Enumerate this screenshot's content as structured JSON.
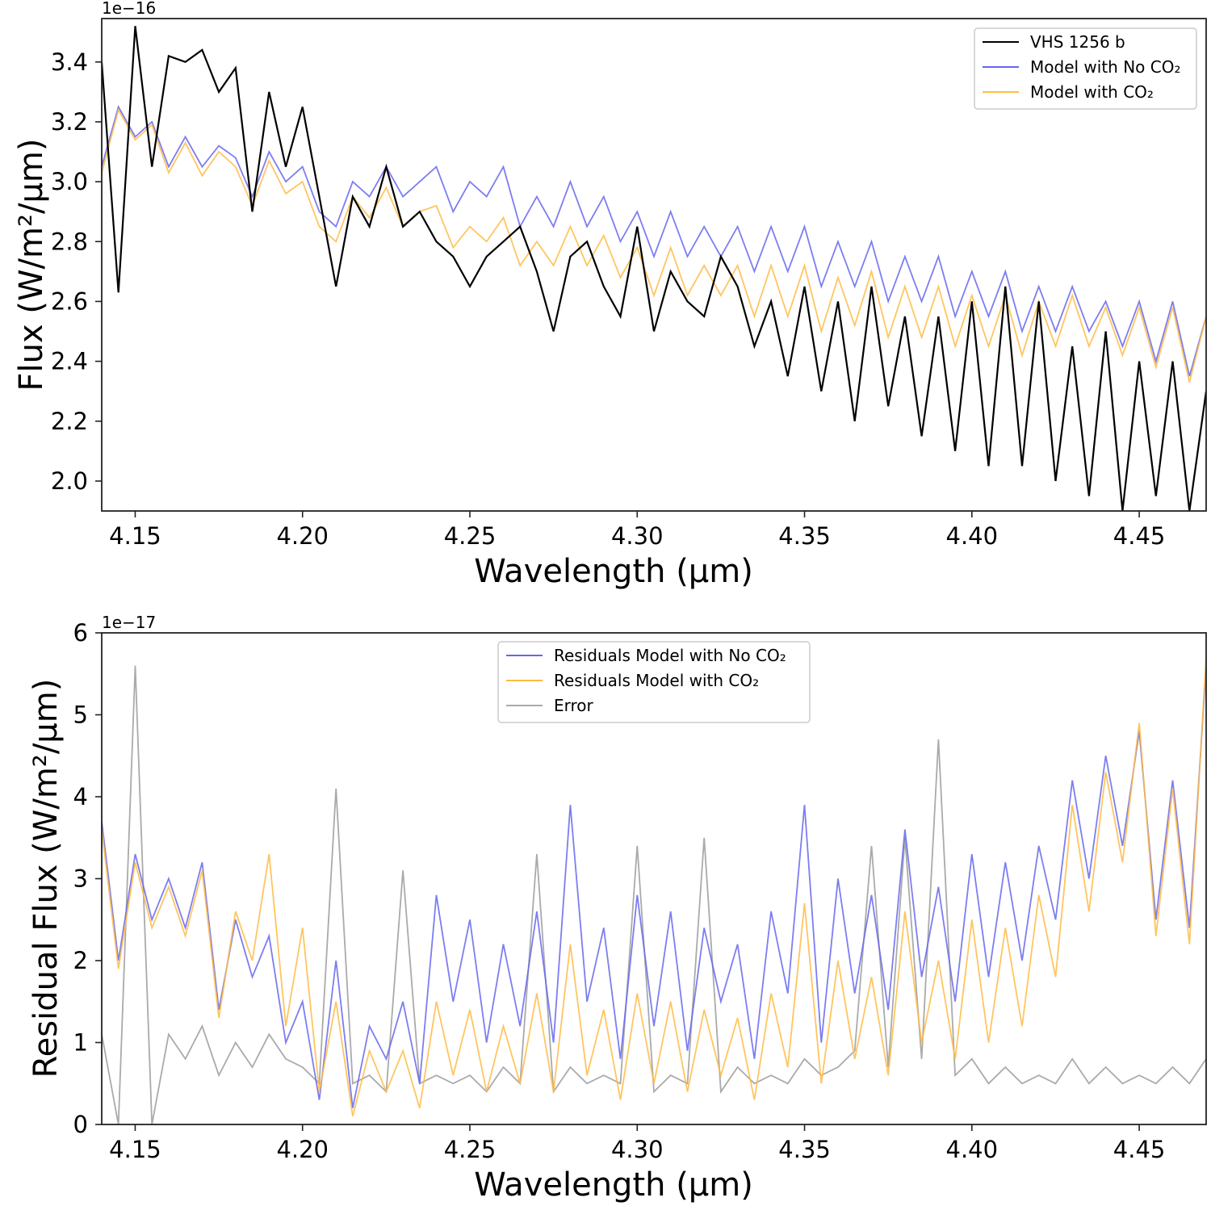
{
  "chart_data": [
    {
      "type": "line",
      "xlabel": "Wavelength (μm)",
      "ylabel": "Flux (W/m²/μm)",
      "offset_text": "1e−16",
      "xlim": [
        4.14,
        4.47
      ],
      "ylim": [
        1.9,
        3.545
      ],
      "xticks": [
        4.15,
        4.2,
        4.25,
        4.3,
        4.35,
        4.4,
        4.45
      ],
      "xtick_labels": [
        "4.15",
        "4.20",
        "4.25",
        "4.30",
        "4.35",
        "4.40",
        "4.45"
      ],
      "yticks": [
        2.0,
        2.2,
        2.4,
        2.6,
        2.8,
        3.0,
        3.2,
        3.4
      ],
      "ytick_labels": [
        "2.0",
        "2.2",
        "2.4",
        "2.6",
        "2.8",
        "3.0",
        "3.2",
        "3.4"
      ],
      "grid": false,
      "legend_position": "top-right",
      "x": [
        4.14,
        4.145,
        4.15,
        4.155,
        4.16,
        4.165,
        4.17,
        4.175,
        4.18,
        4.185,
        4.19,
        4.195,
        4.2,
        4.205,
        4.21,
        4.215,
        4.22,
        4.225,
        4.23,
        4.235,
        4.24,
        4.245,
        4.25,
        4.255,
        4.26,
        4.265,
        4.27,
        4.275,
        4.28,
        4.285,
        4.29,
        4.295,
        4.3,
        4.305,
        4.31,
        4.315,
        4.32,
        4.325,
        4.33,
        4.335,
        4.34,
        4.345,
        4.35,
        4.355,
        4.36,
        4.365,
        4.37,
        4.375,
        4.38,
        4.385,
        4.39,
        4.395,
        4.4,
        4.405,
        4.41,
        4.415,
        4.42,
        4.425,
        4.43,
        4.435,
        4.44,
        4.445,
        4.45,
        4.455,
        4.46,
        4.465,
        4.47
      ],
      "series": [
        {
          "name": "VHS 1256 b",
          "color": "#000000",
          "values": [
            3.4,
            2.63,
            3.52,
            3.05,
            3.42,
            3.4,
            3.44,
            3.3,
            3.38,
            2.9,
            3.3,
            3.05,
            3.25,
            2.95,
            2.65,
            2.95,
            2.85,
            3.05,
            2.85,
            2.9,
            2.8,
            2.75,
            2.65,
            2.75,
            2.8,
            2.85,
            2.7,
            2.5,
            2.75,
            2.8,
            2.65,
            2.55,
            2.85,
            2.5,
            2.7,
            2.6,
            2.55,
            2.75,
            2.65,
            2.45,
            2.6,
            2.35,
            2.65,
            2.3,
            2.6,
            2.2,
            2.65,
            2.25,
            2.55,
            2.15,
            2.55,
            2.1,
            2.6,
            2.05,
            2.65,
            2.05,
            2.6,
            2.0,
            2.45,
            1.95,
            2.5,
            1.9,
            2.4,
            1.95,
            2.4,
            1.9,
            2.3
          ]
        },
        {
          "name": "Model with No CO₂",
          "color": "#6666ee",
          "values": [
            3.05,
            3.25,
            3.15,
            3.2,
            3.05,
            3.15,
            3.05,
            3.12,
            3.08,
            2.95,
            3.1,
            3.0,
            3.05,
            2.9,
            2.85,
            3.0,
            2.95,
            3.05,
            2.95,
            3.0,
            3.05,
            2.9,
            3.0,
            2.95,
            3.05,
            2.85,
            2.95,
            2.85,
            3.0,
            2.85,
            2.95,
            2.8,
            2.9,
            2.75,
            2.9,
            2.75,
            2.85,
            2.75,
            2.85,
            2.7,
            2.85,
            2.7,
            2.85,
            2.65,
            2.8,
            2.65,
            2.8,
            2.6,
            2.75,
            2.6,
            2.75,
            2.55,
            2.7,
            2.55,
            2.7,
            2.5,
            2.65,
            2.5,
            2.65,
            2.5,
            2.6,
            2.45,
            2.6,
            2.4,
            2.6,
            2.35,
            2.55
          ]
        },
        {
          "name": "Model with CO₂",
          "color": "#ffbb44",
          "values": [
            3.03,
            3.24,
            3.14,
            3.19,
            3.03,
            3.13,
            3.02,
            3.1,
            3.05,
            2.92,
            3.07,
            2.96,
            3.0,
            2.85,
            2.8,
            2.95,
            2.88,
            2.98,
            2.85,
            2.9,
            2.92,
            2.78,
            2.85,
            2.8,
            2.88,
            2.72,
            2.8,
            2.72,
            2.85,
            2.72,
            2.82,
            2.68,
            2.78,
            2.62,
            2.78,
            2.62,
            2.72,
            2.62,
            2.72,
            2.55,
            2.72,
            2.55,
            2.72,
            2.5,
            2.68,
            2.52,
            2.7,
            2.48,
            2.65,
            2.48,
            2.65,
            2.45,
            2.62,
            2.45,
            2.62,
            2.42,
            2.6,
            2.45,
            2.62,
            2.45,
            2.58,
            2.42,
            2.58,
            2.38,
            2.58,
            2.33,
            2.55
          ]
        }
      ],
      "legend": [
        "VHS 1256 b",
        "Model with No CO₂",
        "Model with CO₂"
      ]
    },
    {
      "type": "line",
      "xlabel": "Wavelength (μm)",
      "ylabel": "Residual Flux (W/m²/μm)",
      "offset_text": "1e−17",
      "xlim": [
        4.14,
        4.47
      ],
      "ylim": [
        0,
        6
      ],
      "xticks": [
        4.15,
        4.2,
        4.25,
        4.3,
        4.35,
        4.4,
        4.45
      ],
      "xtick_labels": [
        "4.15",
        "4.20",
        "4.25",
        "4.30",
        "4.35",
        "4.40",
        "4.45"
      ],
      "yticks": [
        0,
        1,
        2,
        3,
        4,
        5,
        6
      ],
      "ytick_labels": [
        "0",
        "1",
        "2",
        "3",
        "4",
        "5",
        "6"
      ],
      "grid": false,
      "legend_position": "top-center",
      "x": [
        4.14,
        4.145,
        4.15,
        4.155,
        4.16,
        4.165,
        4.17,
        4.175,
        4.18,
        4.185,
        4.19,
        4.195,
        4.2,
        4.205,
        4.21,
        4.215,
        4.22,
        4.225,
        4.23,
        4.235,
        4.24,
        4.245,
        4.25,
        4.255,
        4.26,
        4.265,
        4.27,
        4.275,
        4.28,
        4.285,
        4.29,
        4.295,
        4.3,
        4.305,
        4.31,
        4.315,
        4.32,
        4.325,
        4.33,
        4.335,
        4.34,
        4.345,
        4.35,
        4.355,
        4.36,
        4.365,
        4.37,
        4.375,
        4.38,
        4.385,
        4.39,
        4.395,
        4.4,
        4.405,
        4.41,
        4.415,
        4.42,
        4.425,
        4.43,
        4.435,
        4.44,
        4.445,
        4.45,
        4.455,
        4.46,
        4.465,
        4.47
      ],
      "series": [
        {
          "name": "Residuals Model with No CO₂",
          "color": "#6666ee",
          "values": [
            3.7,
            2.0,
            3.3,
            2.5,
            3.0,
            2.4,
            3.2,
            1.4,
            2.5,
            1.8,
            2.3,
            1.0,
            1.5,
            0.3,
            2.0,
            0.2,
            1.2,
            0.8,
            1.5,
            0.5,
            2.8,
            1.5,
            2.5,
            1.0,
            2.2,
            1.2,
            2.6,
            1.0,
            3.9,
            1.5,
            2.4,
            0.8,
            2.8,
            1.2,
            2.6,
            0.9,
            2.4,
            1.5,
            2.2,
            0.8,
            2.6,
            1.6,
            3.9,
            1.0,
            3.0,
            1.6,
            2.8,
            1.4,
            3.6,
            1.8,
            2.9,
            1.5,
            3.3,
            1.8,
            3.2,
            2.0,
            3.4,
            2.5,
            4.2,
            3.0,
            4.5,
            3.4,
            4.8,
            2.5,
            4.2,
            2.4,
            5.6
          ]
        },
        {
          "name": "Residuals Model with CO₂",
          "color": "#ffbb44",
          "values": [
            3.6,
            1.9,
            3.2,
            2.4,
            2.9,
            2.3,
            3.1,
            1.3,
            2.6,
            2.0,
            3.3,
            1.2,
            2.4,
            0.4,
            1.5,
            0.1,
            0.9,
            0.4,
            0.9,
            0.2,
            1.5,
            0.6,
            1.4,
            0.4,
            1.2,
            0.5,
            1.6,
            0.4,
            2.2,
            0.6,
            1.4,
            0.3,
            1.6,
            0.5,
            1.5,
            0.4,
            1.4,
            0.6,
            1.3,
            0.3,
            1.6,
            0.7,
            2.7,
            0.5,
            2.0,
            0.8,
            1.8,
            0.6,
            2.6,
            1.0,
            2.0,
            0.8,
            2.5,
            1.0,
            2.4,
            1.2,
            2.8,
            1.8,
            3.9,
            2.6,
            4.3,
            3.2,
            4.9,
            2.3,
            4.1,
            2.2,
            5.7
          ]
        },
        {
          "name": "Error",
          "color": "#aaaaaa",
          "values": [
            1.1,
            0.0,
            5.6,
            0.0,
            1.1,
            0.8,
            1.2,
            0.6,
            1.0,
            0.7,
            1.1,
            0.8,
            0.7,
            0.5,
            4.1,
            0.5,
            0.6,
            0.4,
            3.1,
            0.5,
            0.6,
            0.5,
            0.6,
            0.4,
            0.7,
            0.5,
            3.3,
            0.4,
            0.7,
            0.5,
            0.6,
            0.5,
            3.4,
            0.4,
            0.6,
            0.5,
            3.5,
            0.4,
            0.7,
            0.5,
            0.6,
            0.5,
            0.8,
            0.6,
            0.7,
            0.9,
            3.4,
            0.7,
            3.5,
            0.8,
            4.7,
            0.6,
            0.8,
            0.5,
            0.7,
            0.5,
            0.6,
            0.5,
            0.8,
            0.5,
            0.7,
            0.5,
            0.6,
            0.5,
            0.7,
            0.5,
            0.8
          ]
        }
      ],
      "legend": [
        "Residuals Model with No CO₂",
        "Residuals Model with CO₂",
        "Error"
      ]
    }
  ]
}
